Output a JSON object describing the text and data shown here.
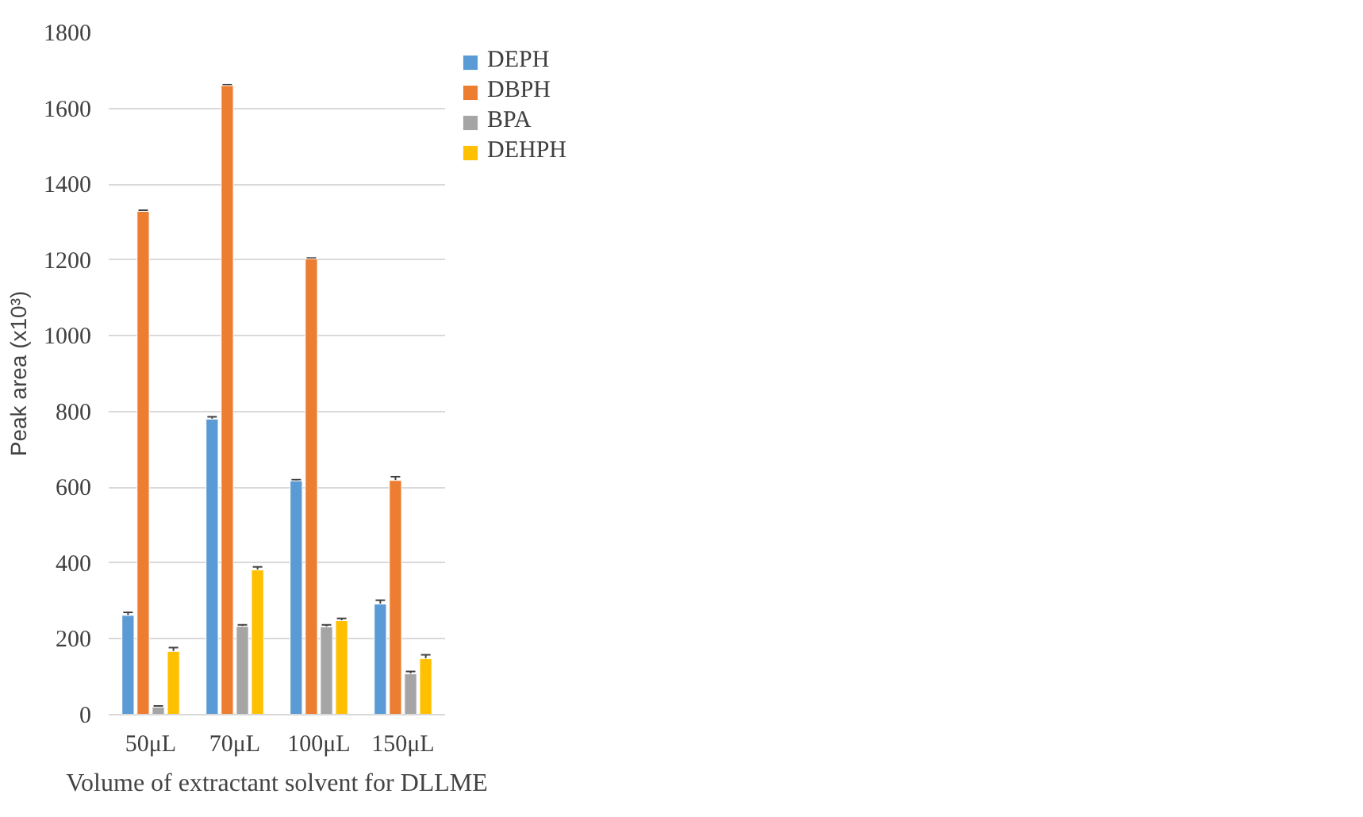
{
  "chart_data": {
    "type": "bar",
    "xlabel": "Volume of extractant solvent for DLLME",
    "ylabel": "Peak area (x10³)",
    "categories": [
      "50μL",
      "70μL",
      "100μL",
      "150μL"
    ],
    "series": [
      {
        "name": "DEPH",
        "color": "#5b9bd5",
        "values": [
          262,
          780,
          617,
          292
        ],
        "errors": [
          8,
          6,
          3,
          10
        ]
      },
      {
        "name": "DBPH",
        "color": "#ed7d31",
        "values": [
          1328,
          1660,
          1203,
          618
        ],
        "errors": [
          3,
          2,
          2,
          10
        ]
      },
      {
        "name": "BPA",
        "color": "#a5a5a5",
        "values": [
          20,
          233,
          232,
          108
        ],
        "errors": [
          3,
          4,
          5,
          6
        ]
      },
      {
        "name": "DEHPH",
        "color": "#ffc000",
        "values": [
          167,
          382,
          248,
          148
        ],
        "errors": [
          10,
          8,
          6,
          10
        ]
      }
    ],
    "ylim": [
      0,
      1800
    ],
    "yticks": [
      0,
      200,
      400,
      600,
      800,
      1000,
      1200,
      1400,
      1600,
      1800
    ],
    "grid": "y",
    "legend": "right"
  }
}
